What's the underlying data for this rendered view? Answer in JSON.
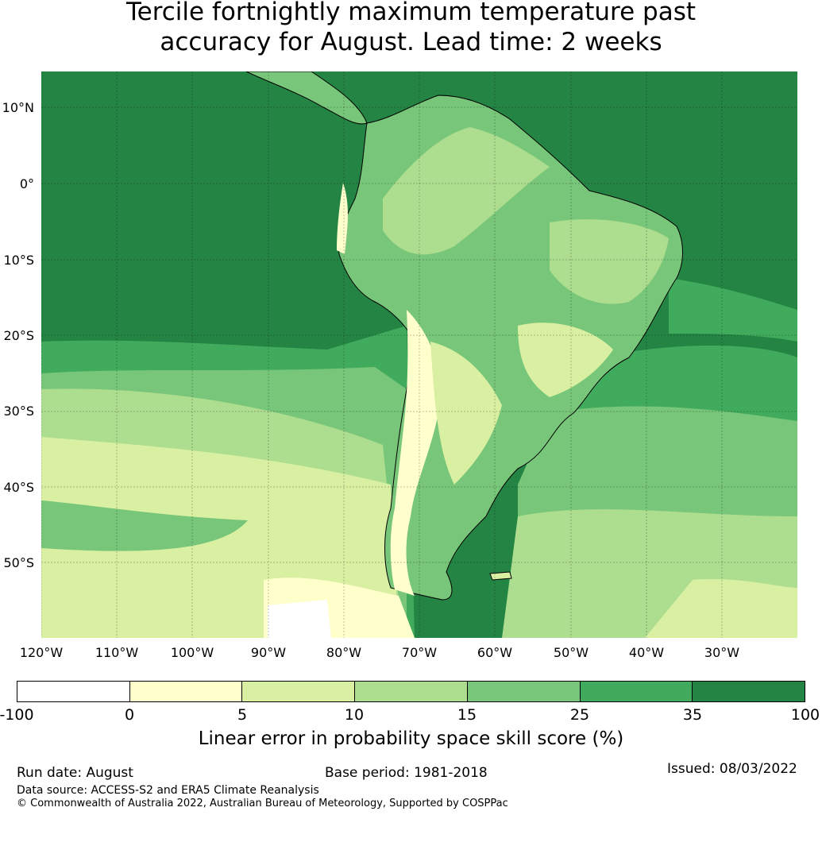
{
  "title": {
    "line1": "Tercile fortnightly maximum temperature past",
    "line2": "accuracy for August. Lead time: 2 weeks"
  },
  "map": {
    "lat_labels": [
      "10°N",
      "0°",
      "10°S",
      "20°S",
      "30°S",
      "40°S",
      "50°S"
    ],
    "lon_labels": [
      "120°W",
      "110°W",
      "100°W",
      "90°W",
      "80°W",
      "70°W",
      "60°W",
      "50°W",
      "40°W",
      "30°W"
    ],
    "colors": {
      "ocean_high": "#238443",
      "skill_25_35": "#41ab5d",
      "skill_15_25": "#78c679",
      "skill_10_15": "#addd8e",
      "skill_5_10": "#d9f0a3",
      "skill_0_5": "#ffffcc",
      "skill_neg": "#ffffff"
    }
  },
  "colorbar": {
    "ticks": [
      "-100",
      "0",
      "5",
      "10",
      "15",
      "25",
      "35",
      "100"
    ],
    "colors": [
      "#ffffff",
      "#ffffcc",
      "#d9f0a3",
      "#addd8e",
      "#78c679",
      "#41ab5d",
      "#238443"
    ],
    "label": "Linear error in probability space skill score (%)"
  },
  "footer": {
    "run_date": "Run date: August",
    "base_period": "Base period: 1981-2018",
    "issued": "Issued: 08/03/2022",
    "data_source": "Data source: ACCESS-S2 and ERA5 Climate Reanalysis",
    "copyright": "© Commonwealth of Australia 2022, Australian Bureau of Meteorology, Supported by COSPPac"
  }
}
